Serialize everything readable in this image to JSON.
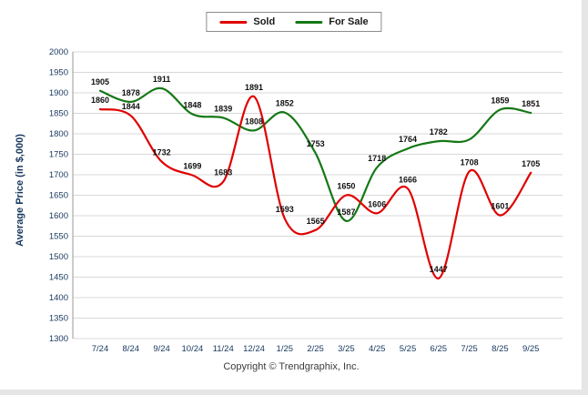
{
  "chart_data": {
    "type": "line",
    "categories": [
      "7/24",
      "8/24",
      "9/24",
      "10/24",
      "11/24",
      "12/24",
      "1/25",
      "2/25",
      "3/25",
      "4/25",
      "5/25",
      "6/25",
      "7/25",
      "8/25",
      "9/25"
    ],
    "series": [
      {
        "name": "Sold",
        "color": "#e00000",
        "values": [
          1860,
          1844,
          1732,
          1699,
          1683,
          1891,
          1593,
          1565,
          1650,
          1606,
          1666,
          1447,
          1708,
          1601,
          1705
        ]
      },
      {
        "name": "For Sale",
        "color": "#157815",
        "values": [
          1905,
          1878,
          1911,
          1848,
          1839,
          1808,
          1852,
          1753,
          1587,
          1718,
          1764,
          1782,
          1786,
          1859,
          1851
        ],
        "labels": [
          "1905",
          "1878",
          "1911",
          "1848",
          "1839",
          "1808",
          "1852",
          "1753",
          "1587",
          "1718",
          "1764",
          "1782",
          "",
          "1859",
          "1851"
        ]
      }
    ],
    "title": "",
    "xlabel": "",
    "ylabel": "Average Price (in $,000)",
    "ylim": [
      1300,
      2000
    ],
    "ytick_step": 50,
    "grid": true,
    "legend_position": "top",
    "footer": "Copyright © Trendgraphix, Inc.",
    "colors": {
      "grid": "#d8d8d8",
      "axis_line": "#9a9a9a",
      "tick_label": "#17375e",
      "data_label": "#111111"
    }
  }
}
